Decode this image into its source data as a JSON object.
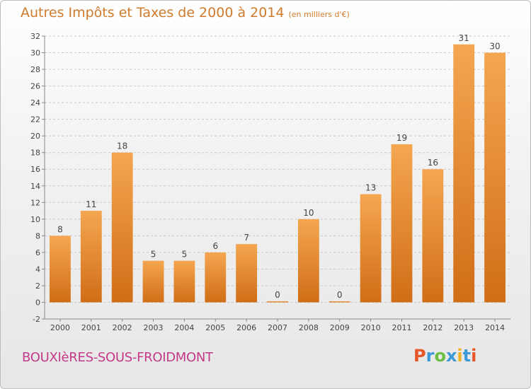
{
  "header": {
    "title": "Autres Impôts et Taxes de 2000 à 2014",
    "subtitle": "(en milliers d'€)"
  },
  "footer": {
    "town": "BOUXIèRES-SOUS-FROIDMONT",
    "logo": [
      "P",
      "r",
      "o",
      "x",
      "i",
      "t",
      "i"
    ]
  },
  "colors": {
    "bar_top": "#f5a650",
    "bar_bottom": "#d06e17",
    "title": "#d07a2b",
    "town": "#c43a88"
  },
  "chart_data": {
    "type": "bar",
    "categories": [
      "2000",
      "2001",
      "2002",
      "2003",
      "2004",
      "2005",
      "2006",
      "2007",
      "2008",
      "2009",
      "2010",
      "2011",
      "2012",
      "2013",
      "2014"
    ],
    "values": [
      8,
      11,
      18,
      5,
      5,
      6,
      7,
      0,
      10,
      0,
      13,
      19,
      16,
      31,
      30
    ],
    "data_labels": [
      "8",
      "11",
      "18",
      "5",
      "5",
      "6",
      "7",
      "0",
      "10",
      "0",
      "13",
      "19",
      "16",
      "31",
      "30"
    ],
    "yticks": [
      "-2",
      "0",
      "2",
      "4",
      "6",
      "8",
      "10",
      "12",
      "14",
      "16",
      "18",
      "20",
      "22",
      "24",
      "26",
      "28",
      "30",
      "32"
    ],
    "ylim": [
      -2,
      32
    ],
    "grid": "horizontal dashed",
    "legend": "none"
  }
}
